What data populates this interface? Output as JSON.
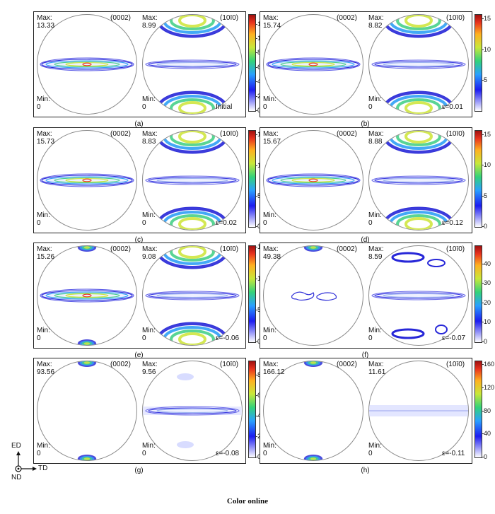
{
  "panels": [
    {
      "label": "(a)",
      "left_max": "13.33",
      "right_max": "8.99",
      "left_min": "0",
      "right_min": "0",
      "plane_left": "(0002)",
      "plane_right": "(10ī0)",
      "strain": "Initial",
      "cbar_ticks": [
        "0",
        "2",
        "4",
        "6",
        "8",
        "10",
        "12"
      ],
      "cbar_max": 13.33,
      "left_pattern": "band",
      "right_pattern": "poles"
    },
    {
      "label": "(b)",
      "left_max": "15.74",
      "right_max": "8.82",
      "left_min": "0",
      "right_min": "0",
      "plane_left": "(0002)",
      "plane_right": "(10ī0)",
      "strain": "ε=0.01",
      "cbar_ticks": [
        "5",
        "10",
        "15"
      ],
      "cbar_max": 15.74,
      "left_pattern": "band",
      "right_pattern": "poles"
    },
    {
      "label": "(c)",
      "left_max": "15.73",
      "right_max": "8.83",
      "left_min": "0",
      "right_min": "0",
      "plane_left": "(0002)",
      "plane_right": "(10ī0)",
      "strain": "ε=0.02",
      "cbar_ticks": [
        "0",
        "5",
        "10",
        "15"
      ],
      "cbar_max": 15.73,
      "left_pattern": "band",
      "right_pattern": "poles"
    },
    {
      "label": "(d)",
      "left_max": "15.67",
      "right_max": "8.88",
      "left_min": "0",
      "right_min": "0",
      "plane_left": "(0002)",
      "plane_right": "(10ī0)",
      "strain": "ε=0.12",
      "cbar_ticks": [
        "0",
        "5",
        "10",
        "15"
      ],
      "cbar_max": 15.67,
      "left_pattern": "band",
      "right_pattern": "poles"
    },
    {
      "label": "(e)",
      "left_max": "15.26",
      "right_max": "9.08",
      "left_min": "0",
      "right_min": "0",
      "plane_left": "(0002)",
      "plane_right": "(10ī0)",
      "strain": "ε=-0.06",
      "cbar_ticks": [
        "0",
        "5",
        "10",
        "15"
      ],
      "cbar_max": 15.26,
      "left_pattern": "band-poles",
      "right_pattern": "poles"
    },
    {
      "label": "(f)",
      "left_max": "49.38",
      "right_max": "8.59",
      "left_min": "0",
      "right_min": "0",
      "plane_left": "(0002)",
      "plane_right": "(10ī0)",
      "strain": "ε=-0.07",
      "cbar_ticks": [
        "0",
        "10",
        "20",
        "30",
        "40"
      ],
      "cbar_max": 49.38,
      "left_pattern": "sparse",
      "right_pattern": "split"
    },
    {
      "label": "(g)",
      "left_max": "93.56",
      "right_max": "9.56",
      "left_min": "0",
      "right_min": "0",
      "plane_left": "(0002)",
      "plane_right": "(10ī0)",
      "strain": "ε=-0.08",
      "cbar_ticks": [
        "0",
        "20",
        "40",
        "60",
        "80"
      ],
      "cbar_max": 93.56,
      "left_pattern": "poles-only",
      "right_pattern": "faint"
    },
    {
      "label": "(h)",
      "left_max": "166.12",
      "right_max": "11.61",
      "left_min": "0",
      "right_min": "0",
      "plane_left": "(0002)",
      "plane_right": "(10ī0)",
      "strain": "ε=-0.11",
      "cbar_ticks": [
        "0",
        "40",
        "80",
        "120",
        "160"
      ],
      "cbar_max": 166.12,
      "left_pattern": "poles-only",
      "right_pattern": "band-faint"
    }
  ],
  "max_label": "Max:",
  "min_label": "Min:",
  "axes": {
    "up": "ED",
    "right": "TD",
    "center": "ND"
  },
  "footer": "Color online"
}
